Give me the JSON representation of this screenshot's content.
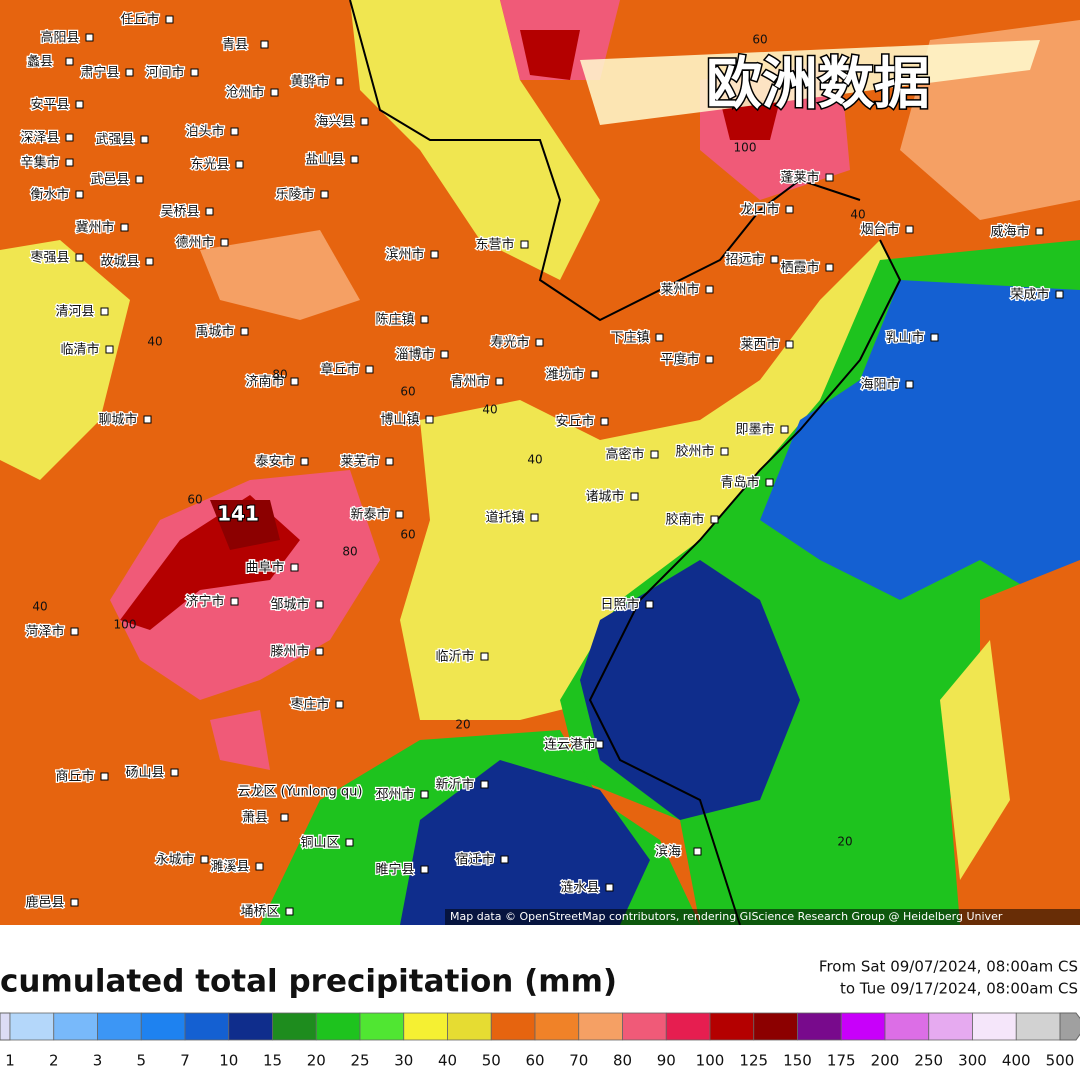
{
  "overlay_title": "欧洲数据",
  "map": {
    "max_label": 141,
    "contour_labels": [
      60,
      100,
      40,
      40,
      80,
      60,
      40,
      40,
      60,
      80,
      60,
      100,
      40,
      20,
      20
    ],
    "cities": [
      "任丘市",
      "高阳县",
      "青县",
      "蠡县",
      "肃宁县",
      "河间市",
      "黄骅市",
      "安平县",
      "沧州市",
      "深泽县",
      "武强县",
      "泊头市",
      "海兴县",
      "辛集市",
      "武邑县",
      "东光县",
      "盐山县",
      "衡水市",
      "吴桥县",
      "乐陵市",
      "冀州市",
      "枣强县",
      "故城县",
      "德州市",
      "滨州市",
      "东营市",
      "蓬莱市",
      "龙口市",
      "烟台市",
      "威海市",
      "招远市",
      "栖霞市",
      "莱州市",
      "荣成市",
      "清河县",
      "禹城市",
      "陈庄镇",
      "临清市",
      "寿光市",
      "下庄镇",
      "乳山市",
      "淄博市",
      "章丘市",
      "潍坊市",
      "平度市",
      "莱西市",
      "海阳市",
      "济南市",
      "青州市",
      "聊城市",
      "博山镇",
      "安丘市",
      "即墨市",
      "泰安市",
      "莱芜市",
      "高密市",
      "胶州市",
      "青岛市",
      "诸城市",
      "道托镇",
      "胶南市",
      "新泰市",
      "曲阜市",
      "济宁市",
      "邹城市",
      "日照市",
      "菏泽市",
      "滕州市",
      "临沂市",
      "枣庄市",
      "连云港市",
      "商丘市",
      "砀山县",
      "新沂市",
      "邳州市",
      "萧县",
      "铜山区",
      "滨海",
      "永城市",
      "睢宁县",
      "宿迁市",
      "濉溪县",
      "涟水县",
      "鹿邑县",
      "埇桥区",
      "云龙区 (Yunlong qu)"
    ],
    "credit": "Map data © OpenStreetMap contributors, rendering GIScience Research Group @ Heidelberg Univer"
  },
  "legend": {
    "title": "cumulated total precipitation (mm)",
    "period_from": "From Sat 09/07/2024, 08:00am CS",
    "period_to": "to Tue 09/17/2024, 08:00am CS",
    "levels": [
      {
        "value": 1,
        "color": "#b4d7fa"
      },
      {
        "value": 2,
        "color": "#78b9fa"
      },
      {
        "value": 3,
        "color": "#3c96f5"
      },
      {
        "value": 5,
        "color": "#1e82f0"
      },
      {
        "value": 7,
        "color": "#1460d2"
      },
      {
        "value": 10,
        "color": "#0f2d8c"
      },
      {
        "value": 15,
        "color": "#1e8c1e"
      },
      {
        "value": 20,
        "color": "#1ec31e"
      },
      {
        "value": 25,
        "color": "#50e632"
      },
      {
        "value": 30,
        "color": "#f5f032"
      },
      {
        "value": 40,
        "color": "#e6dc32"
      },
      {
        "value": 50,
        "color": "#e6640f"
      },
      {
        "value": 60,
        "color": "#f08228"
      },
      {
        "value": 70,
        "color": "#f5a064"
      },
      {
        "value": 80,
        "color": "#f05a78"
      },
      {
        "value": 90,
        "color": "#e61e50"
      },
      {
        "value": 100,
        "color": "#b40000"
      },
      {
        "value": 125,
        "color": "#8c0000"
      },
      {
        "value": 150,
        "color": "#780a8c"
      },
      {
        "value": 175,
        "color": "#c800fa"
      },
      {
        "value": 200,
        "color": "#dc6ee6"
      },
      {
        "value": 250,
        "color": "#e6aaf0"
      },
      {
        "value": 300,
        "color": "#f5e6fa"
      },
      {
        "value": 400,
        "color": "#d2d2d2"
      },
      {
        "value": 500,
        "color": "#a0a0a0"
      }
    ]
  }
}
